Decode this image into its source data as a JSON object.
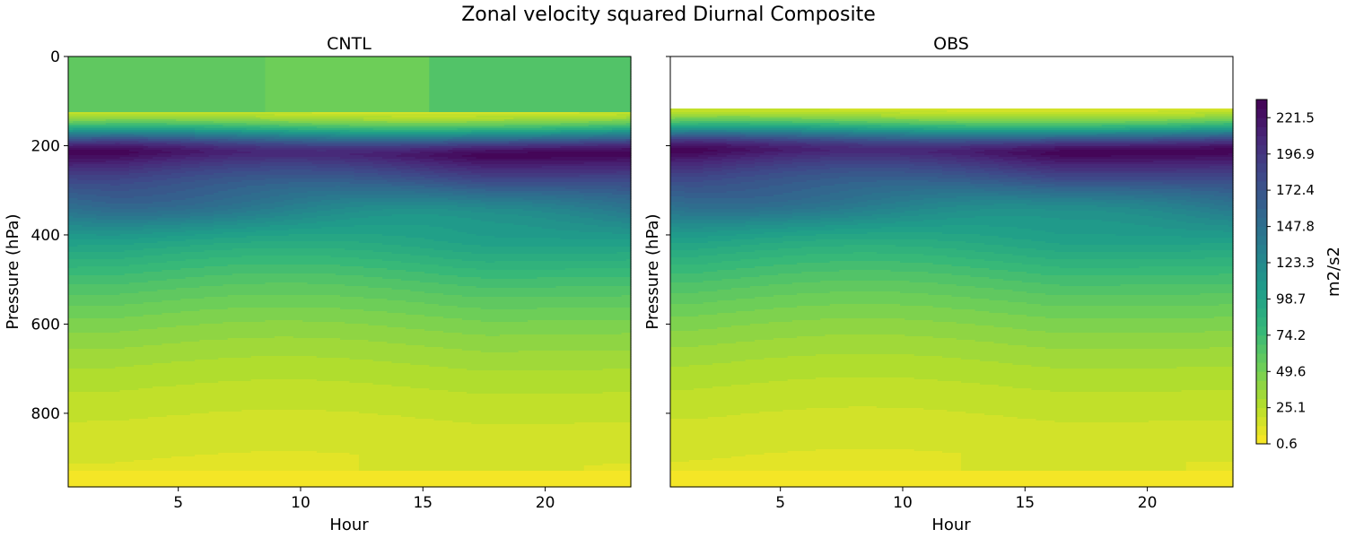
{
  "title": "Zonal velocity squared Diurnal Composite",
  "colormap": [
    "#440154",
    "#482878",
    "#3e4989",
    "#31688e",
    "#26828e",
    "#1f9e89",
    "#35b779",
    "#6ece58",
    "#b5de2b",
    "#fde725"
  ],
  "chart_data": {
    "type": "heatmap",
    "title": "Zonal velocity squared Diurnal Composite",
    "shared_yaxis": true,
    "panels": [
      {
        "title": "CNTL",
        "xlabel": "Hour",
        "ylabel": "Pressure (hPa)",
        "xlim": [
          0.5,
          23.5
        ],
        "ylim": [
          965,
          0
        ],
        "xticks": [
          5,
          10,
          15,
          20
        ],
        "yticks": [
          0,
          200,
          400,
          600,
          800
        ],
        "data_top_hPa": 0,
        "jet_level_hPa": 220,
        "jet_max_hour": 22,
        "jet_min_hour": 11,
        "upper_layer_values": {
          "hours_0_to_8": 60,
          "hours_8_to_15": 50,
          "hours_15_to_24": 63
        }
      },
      {
        "title": "OBS",
        "xlabel": "Hour",
        "ylabel": "Pressure (hPa)",
        "xlim": [
          0.5,
          23.5
        ],
        "ylim": [
          965,
          0
        ],
        "xticks": [
          5,
          10,
          15,
          20
        ],
        "yticks": [
          0,
          200,
          400,
          600,
          800
        ],
        "data_top_hPa": 115,
        "jet_level_hPa": 215,
        "jet_max_hour": 21,
        "jet_min_hour": 11
      }
    ],
    "colorbar": {
      "label": "m2/s2",
      "min": 0.6,
      "max": 233.8,
      "ticks": [
        "0.6",
        "25.1",
        "49.6",
        "74.2",
        "98.7",
        "123.3",
        "147.8",
        "172.4",
        "196.9",
        "221.5"
      ],
      "tick_values": [
        0.6,
        25.1,
        49.6,
        74.2,
        98.7,
        123.3,
        147.8,
        172.4,
        196.9,
        221.5
      ]
    }
  }
}
